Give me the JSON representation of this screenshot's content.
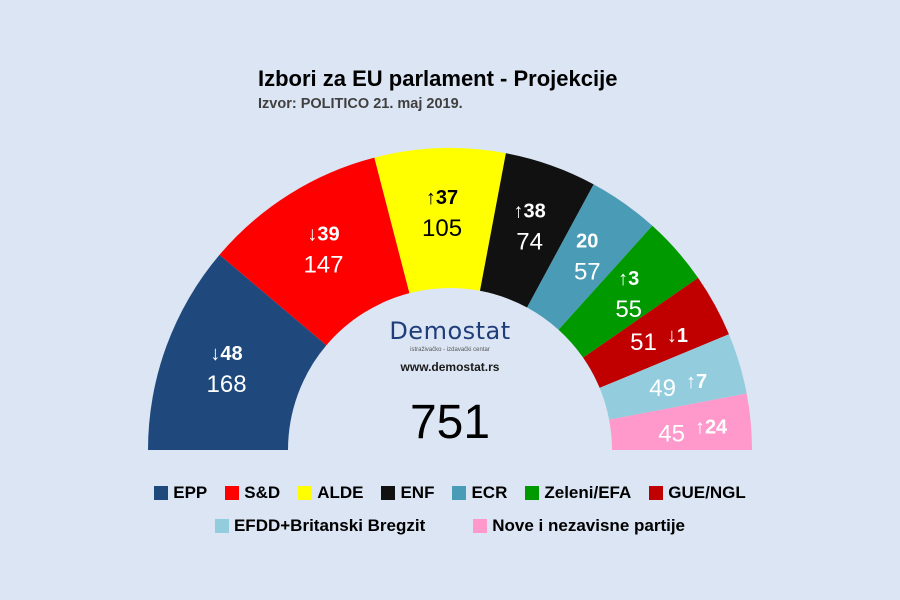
{
  "title": "Izbori za EU parlament - Projekcije",
  "subtitle": "Izvor: POLITICO 21. maj 2019.",
  "logo": {
    "brand": "Demostat",
    "tagline": "istraživačko - izdavački centar",
    "url": "www.demostat.rs"
  },
  "chart_data": {
    "type": "parliament-semicircle",
    "total": "751",
    "series": [
      {
        "name": "EPP",
        "seats": 168,
        "change": "48",
        "direction": "down",
        "color": "#1f497d"
      },
      {
        "name": "S&D",
        "seats": 147,
        "change": "39",
        "direction": "down",
        "color": "#ff0000"
      },
      {
        "name": "ALDE",
        "seats": 105,
        "change": "37",
        "direction": "up",
        "color": "#ffff00"
      },
      {
        "name": "ENF",
        "seats": 74,
        "change": "38",
        "direction": "up",
        "color": "#111111"
      },
      {
        "name": "ECR",
        "seats": 57,
        "change": "20",
        "direction": "none",
        "color": "#4a9bb5"
      },
      {
        "name": "Zeleni/EFA",
        "seats": 55,
        "change": "3",
        "direction": "up",
        "color": "#009a00"
      },
      {
        "name": "GUE/NGL",
        "seats": 51,
        "change": "1",
        "direction": "down",
        "color": "#c00000"
      },
      {
        "name": "EFDD+Britanski Bregzit",
        "seats": 49,
        "change": "7",
        "direction": "up",
        "color": "#93cddd"
      },
      {
        "name": "Nove i nezavisne partije",
        "seats": 45,
        "change": "24",
        "direction": "up",
        "color": "#ff99cc"
      }
    ]
  }
}
